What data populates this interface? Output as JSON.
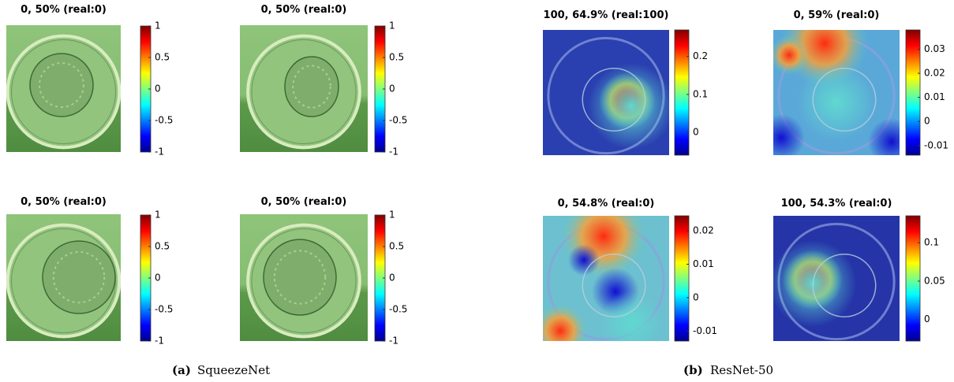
{
  "panels": [
    {
      "title": "0, 50% (real:0)",
      "colorbar": {
        "lim": [
          -1,
          1
        ],
        "ticks": [
          1,
          0.5,
          0,
          -0.5,
          -1
        ]
      }
    },
    {
      "title": "0, 50% (real:0)",
      "colorbar": {
        "lim": [
          -1,
          1
        ],
        "ticks": [
          1,
          0.5,
          0,
          -0.5,
          -1
        ]
      }
    },
    {
      "title": "0, 50% (real:0)",
      "colorbar": {
        "lim": [
          -1,
          1
        ],
        "ticks": [
          1,
          0.5,
          0,
          -0.5,
          -1
        ]
      }
    },
    {
      "title": "0, 50% (real:0)",
      "colorbar": {
        "lim": [
          -1,
          1
        ],
        "ticks": [
          1,
          0.5,
          0,
          -0.5,
          -1
        ]
      }
    },
    {
      "title": "100, 64.9% (real:100)",
      "colorbar": {
        "lim": [
          -0.06,
          0.27
        ],
        "ticks": [
          0.2,
          0.1,
          0
        ]
      }
    },
    {
      "title": "0, 59% (real:0)",
      "colorbar": {
        "lim": [
          -0.014,
          0.038
        ],
        "ticks": [
          0.03,
          0.02,
          0.01,
          0,
          -0.01
        ]
      }
    },
    {
      "title": "0, 54.8% (real:0)",
      "colorbar": {
        "lim": [
          -0.013,
          0.0245
        ],
        "ticks": [
          0.02,
          0.01,
          0,
          -0.01
        ]
      }
    },
    {
      "title": "100, 54.3% (real:0)",
      "colorbar": {
        "lim": [
          -0.028,
          0.135
        ],
        "ticks": [
          0.1,
          0.05,
          0
        ]
      }
    }
  ],
  "captions": [
    {
      "label": "(a)",
      "text": "SqueezeNet"
    },
    {
      "label": "(b)",
      "text": "ResNet-50"
    }
  ]
}
